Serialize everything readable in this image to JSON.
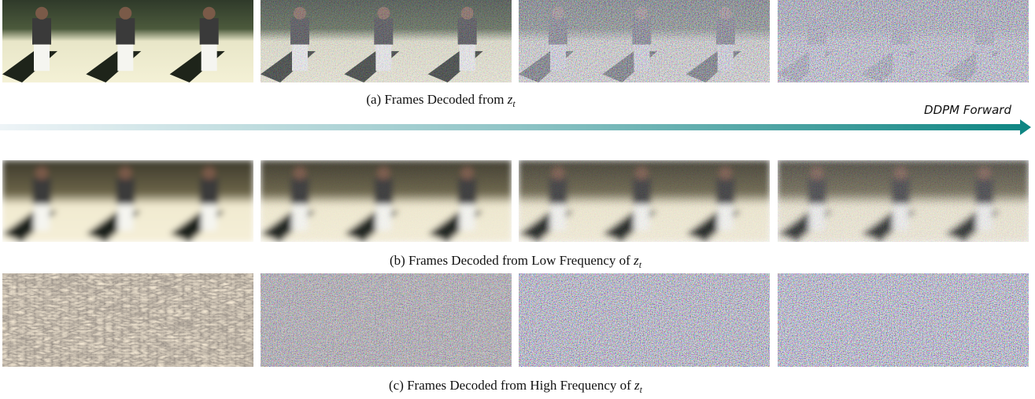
{
  "captions": [
    {
      "text": "(a) Frames Decoded from",
      "math": "z",
      "sub": "t"
    },
    {
      "text": "(b) Frames Decoded from Low Frequency of",
      "math": "z",
      "sub": "t"
    },
    {
      "text": "(c) Frames Decoded from High Frequency of",
      "math": "z",
      "sub": "t"
    }
  ],
  "arrow_label": "DDPM Forward"
}
